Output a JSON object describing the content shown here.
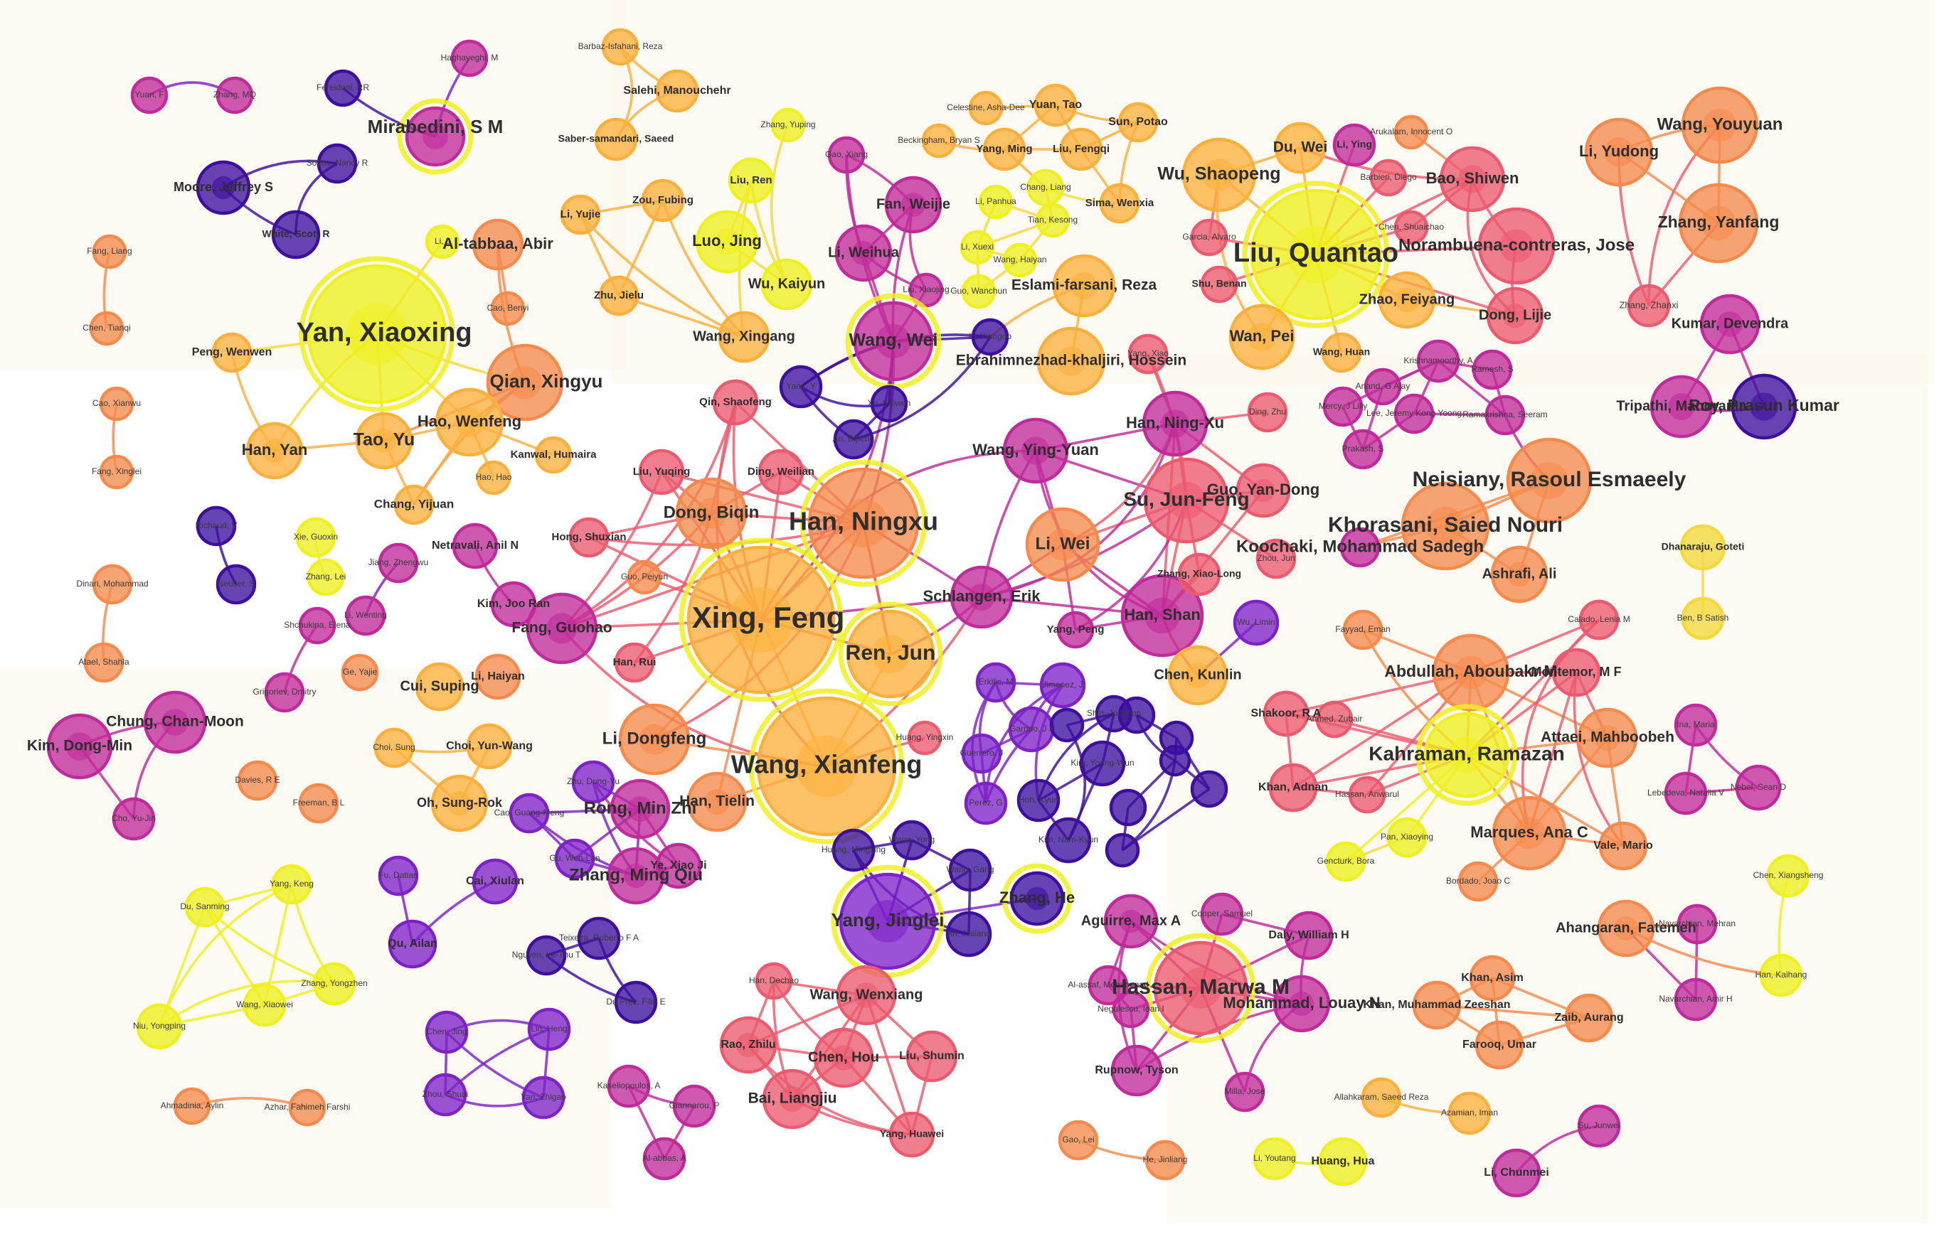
{
  "colors": {
    "dark_purple": "#3c0f9e",
    "purple": "#7e22c8",
    "magenta": "#c02a9a",
    "pink_red": "#eb5a6e",
    "orange": "#f58a4c",
    "light_orange": "#fbb03c",
    "yellow": "#f3d93a",
    "bright_yellow": "#eef020",
    "background_patch": "#fbf5ea"
  },
  "nodes": {
    "n1": "Yuan, F",
    "n2": "Zhang, MQ",
    "n3": "Haghayeghi, M",
    "n4": "Fereidoni, RR",
    "n5": "Mirabedini, S M",
    "n6": "Moore, Jeffrey S",
    "n7": "Sottos, Nancy R",
    "n8": "White, Scott R",
    "n9": "Barbaz-Isfahani, Reza",
    "n10": "Salehi, Manouchehr",
    "n11": "Saber-samandari, Saeed",
    "n12": "Zhang, Yuping",
    "n13": "Liu, Ren",
    "n14": "Luo, Jing",
    "n15": "Wu, Kaiyun",
    "n16": "Li, Yujie",
    "n17": "Zou, Fubing",
    "n18": "Zhu, Jielu",
    "n19": "Wang, Xingang",
    "n20": "Li, J",
    "n21": "Al-tabbaa, Abir",
    "n22": "Cao, Benyi",
    "n23": "Yan, Xiaoxing",
    "n24": "Qian, Xingyu",
    "n25": "Peng, Wenwen",
    "n26": "Hao, Wenfeng",
    "n27": "Tao, Yu",
    "n28": "Han, Yan",
    "n29": "Kanwal, Humaira",
    "n30": "Hao, Hao",
    "n31": "Chang, Yijuan",
    "n32": "Fang, Liang",
    "n33": "Chen, Tianqi",
    "n34": "Cao, Xianwu",
    "n35": "Fang, Xinglei",
    "n36": "Gao, Xiang",
    "n37": "Fan, Weijie",
    "n38": "Li, Weihua",
    "n39": "Liu, Xiaojing",
    "n40": "Wang, Wei",
    "n41": "Celestine, Asha-Dee",
    "n42": "Beckingham, Bryan S",
    "n43": "Yuan, Tao",
    "n44": "Sun, Potao",
    "n45": "Yang, Ming",
    "n46": "Liu, Fengqi",
    "n47": "Chang, Liang",
    "n48": "Li, Panhua",
    "n49": "Tian, Kesong",
    "n50": "Sima, Wenxia",
    "n51": "Li, Xuexi",
    "n52": "Wang, Haiyan",
    "n53": "Guo, Wanchun",
    "n54": "Eslami-farsani, Reza",
    "n55": "Ebrahimnezhad-khaljiri, Hossein",
    "n56": "Li, Xiangdo",
    "n57": "Wu, Shaopeng",
    "n58": "Du, Wei",
    "n59": "Li, Ying",
    "n60": "Arukalam, Innocent O",
    "n61": "Barbieri, Diego",
    "n62": "Bao, Shiwen",
    "n63": "Liu, Quantao",
    "n64": "Chen, Shuaichao",
    "n65": "Garcia, Alvaro",
    "n66": "Norambuena-contreras, Jose",
    "n67": "Shu, Benan",
    "n68": "Zhao, Feiyang",
    "n69": "Dong, Lijie",
    "n70": "Wan, Pei",
    "n71": "Wang, Huan",
    "n72": "Wang, Youyuan",
    "n73": "Li, Yudong",
    "n74": "Zhang, Yanfang",
    "n75": "Zhang, Zhanxi",
    "n76": "Kumar, Devendra",
    "n77": "Tripathi, Manorama",
    "n78": "Roy, Prasun Kumar",
    "n79": "Qin, Shaofeng",
    "n80": "Yang, Y",
    "n81": "Xu, Kaiwen",
    "n82": "An, Bipeng",
    "n83": "Liu, Yuqing",
    "n84": "Ding, Weilian",
    "n85": "Dong, Biqin",
    "n86": "Han, Ningxu",
    "n87": "Hong, Shuxian",
    "n88": "Guo, Peiyun",
    "n89": "Fang, Guohao",
    "n90": "Xing, Feng",
    "n91": "Han, Rui",
    "n92": "Ren, Jun",
    "n93": "Li, Dongfeng",
    "n94": "Wang, Xianfeng",
    "n95": "Han, Tielin",
    "n96": "Huang, Yingxin",
    "n97": "Wang, Ying-Yuan",
    "n98": "Han, Ning-Xu",
    "n99": "Su, Jun-Feng",
    "n100": "Guo, Yan-Dong",
    "n101": "Li, Wei",
    "n102": "Schlangen, Erik",
    "n103": "Yang, Peng",
    "n104": "Han, Shan",
    "n105": "Zhang, Xiao-Long",
    "n106": "Ding, Zhu",
    "n107": "Zhou, Jun",
    "n108": "Wu, Limin",
    "n109": "Chen, Kunlin",
    "n110": "Yang, Xiao",
    "n111": "Mercy, J Lilly",
    "n112": "Anand, G Ajay",
    "n113": "Krishnamoorthy, A",
    "n114": "Ramesh, S",
    "n115": "Lee, Jeremy Kong Yoong",
    "n116": "Ramakrishna, Seeram",
    "n117": "Prakash, S",
    "n118": "Neisiany, Rasoul Esmaeely",
    "n119": "Khorasani, Saied Nouri",
    "n120": "Koochaki, Mohammad Sadegh",
    "n121": "Ashrafi, Ali",
    "n122": "Dhanaraju, Goteti",
    "n123": "Ben, B Satish",
    "n124": "Richaud, V",
    "n125": "Neuser, S",
    "n126": "Xie, Guoxin",
    "n127": "Zhang, Lei",
    "n128": "Jiang, Zhengwu",
    "n129": "Netravali, Anil N",
    "n130": "Li, Wenting",
    "n131": "Kim, Joo Ran",
    "n132": "Dinari, Mohammad",
    "n133": "Atael, Shahla",
    "n134": "Shchukina, Elena",
    "n135": "Grigoriev, Dmitry",
    "n136": "Ge, Yajie",
    "n137": "Cui, Suping",
    "n138": "Li, Haiyan",
    "n139": "Chung, Chan-Moon",
    "n140": "Kim, Dong-Min",
    "n141": "Cho, Yu-Jin",
    "n142": "Choi, Sung",
    "n143": "Choi, Yun-Wang",
    "n144": "Oh, Sung-Rok",
    "n145": "Davies, R E",
    "n146": "Freeman, B L",
    "n147": "Erkilic, M",
    "n148": "Jimenez, J",
    "n149": "Garrido, J J",
    "n150": "Guerrero, J",
    "n151": "Perez, G",
    "n152": "Shin, Jooyeon",
    "n153": "Kim, Young-Wun",
    "n154": "Hoh, Kyun",
    "n155": "Kim, Nam-Kyun",
    "n156": "Zhu, Dong-Yu",
    "n157": "Cao, Guang-Meng",
    "n158": "Rong, Min Zhi",
    "n159": "Gu, Wen-Lan",
    "n160": "Zhang, Ming Qiu",
    "n161": "Ye, Xiao Ji",
    "n162": "Du, Sanming",
    "n163": "Yang, Keng",
    "n164": "Zhang, Yongzhen",
    "n165": "Wang, Xiaowei",
    "n166": "Niu, Yongping",
    "n167": "Fu, Datian",
    "n168": "Cai, Xiulan",
    "n169": "Qu, Ailan",
    "n170": "Teixeira, Roberto F A",
    "n171": "Nguyen, Le-Thu T",
    "n172": "Du Prez, Filip E",
    "n173": "Chen, Jing",
    "n174": "Lin, Heng",
    "n175": "Zhou, Shuai",
    "n176": "Yan, Zhigao",
    "n177": "Ahmadinia, Aylin",
    "n178": "Azhar, Fahimeh Farshi",
    "n179": "Huang, Mingxing",
    "n180": "Wang, Yong",
    "n181": "Wang, Gang",
    "n182": "Yang, Jinglei",
    "n183": "Zhang, He",
    "n184": "An, Jialiang",
    "n185": "Han, Dechao",
    "n186": "Wang, Wenxiang",
    "n187": "Rao, Zhilu",
    "n188": "Chen, Hou",
    "n189": "Liu, Shumin",
    "n190": "Bai, Liangjiu",
    "n191": "Yang, Huawei",
    "n192": "Kaseliopoulos, A",
    "n193": "Giannarou, P",
    "n194": "Al-abbas, A",
    "n195": "Aguirre, Max A",
    "n196": "Cooper, Samuel",
    "n197": "Daly, William H",
    "n198": "Al-assaf, Mohammad",
    "n199": "Hassan, Marwa M",
    "n200": "Mohammad, Louay N",
    "n201": "Negulescu, Ioan I",
    "n202": "Rupnow, Tyson",
    "n203": "Milla, Jose",
    "n204": "Gao, Lei",
    "n205": "He, Jinliang",
    "n206": "Li, Youtang",
    "n207": "Huang, Hua",
    "n208": "Allahkaram, Saeed Reza",
    "n209": "Azamian, Iman",
    "n210": "Li, Chunmei",
    "n211": "Su, Junwei",
    "n212": "Fayyad, Eman",
    "n213": "Calado, Lenia M",
    "n214": "Abdullah, Aboubakr M",
    "n215": "Montemor, M F",
    "n216": "Shakoor, R A",
    "n217": "Ahmed, Zubair",
    "n218": "Attaei, Mahboobeh",
    "n219": "Kahraman, Ramazan",
    "n220": "Khan, Adnan",
    "n221": "Hassan, Anwarul",
    "n222": "Pan, Xiaoying",
    "n223": "Marques, Ana C",
    "n224": "Gencturk, Bora",
    "n225": "Vale, Mario",
    "n226": "Bordado, Joao C",
    "n227": "Ina, Maria",
    "n228": "Lebedeva, Natalia V",
    "n229": "Nebel, Sean D",
    "n230": "Chen, Xiangsheng",
    "n231": "Han, Kaihang",
    "n232": "Ahangaran, Fatemeh",
    "n233": "Navarchian, Mehran",
    "n234": "Navarchian, Amir H",
    "n235": "Khan, Asim",
    "n236": "Khan, Muhammad Zeeshan",
    "n237": "Zaib, Aurang",
    "n238": "Farooq, Umar"
  }
}
